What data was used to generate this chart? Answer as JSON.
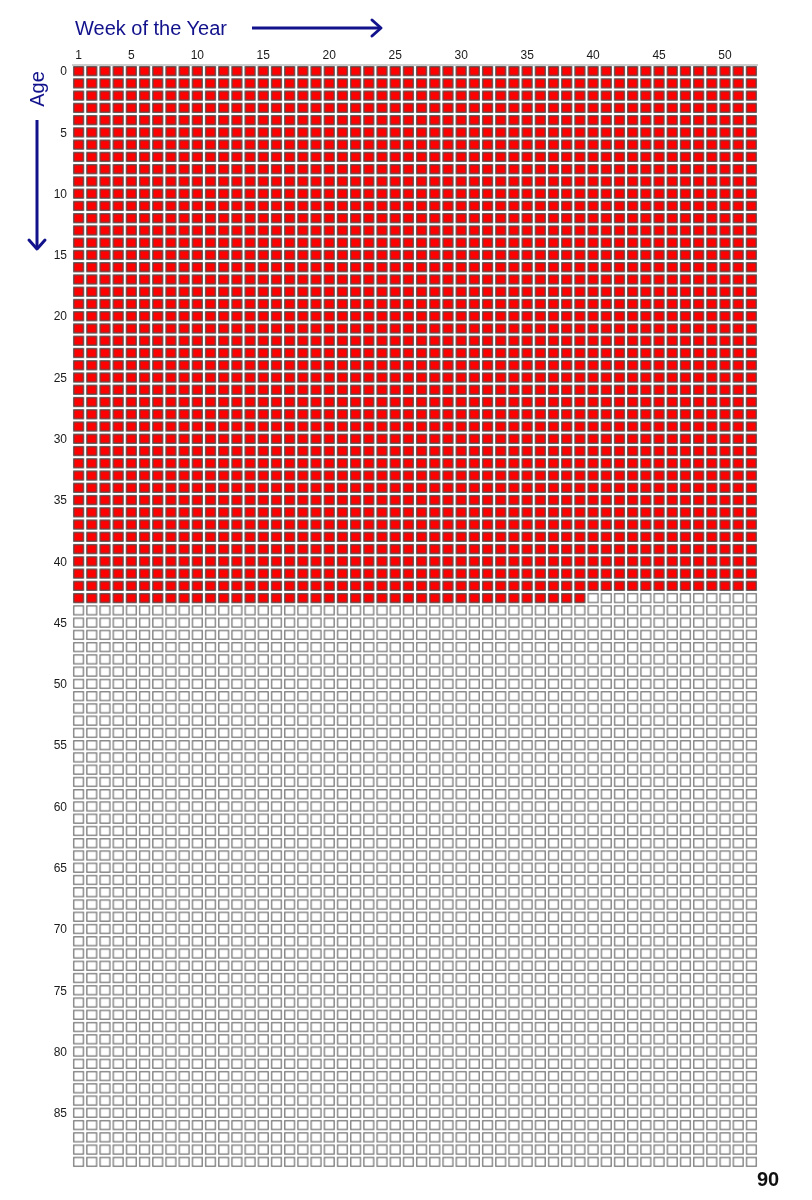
{
  "chart_data": {
    "type": "bar",
    "orientation": "horizontal",
    "stacked": true,
    "xlabel": "Week of the Year",
    "ylabel": "Age",
    "annotations": [
      "90"
    ],
    "categories": [
      "0",
      null,
      null,
      null,
      null,
      "5",
      null,
      null,
      null,
      null,
      "10",
      null,
      null,
      null,
      null,
      "15",
      null,
      null,
      null,
      null,
      "20",
      null,
      null,
      null,
      null,
      "25",
      null,
      null,
      null,
      null,
      "30",
      null,
      null,
      null,
      null,
      "35",
      null,
      null,
      null,
      null,
      "40",
      null,
      null,
      null,
      null,
      "45",
      null,
      null,
      null,
      null,
      "50",
      null,
      null,
      null,
      null,
      "55",
      null,
      null,
      null,
      null,
      "60",
      null,
      null,
      null,
      null,
      "65",
      null,
      null,
      null,
      null,
      "70",
      null,
      null,
      null,
      null,
      "75",
      null,
      null,
      null,
      null,
      "80",
      null,
      null,
      null,
      null,
      "85",
      null,
      null,
      null,
      null
    ],
    "xlim": [
      0,
      52
    ],
    "xticks": [
      {
        "value": 0.5,
        "label": "1"
      },
      {
        "value": 4.5,
        "label": "5"
      },
      {
        "value": 9.5,
        "label": "10"
      },
      {
        "value": 14.5,
        "label": "15"
      },
      {
        "value": 19.5,
        "label": "20"
      },
      {
        "value": 24.5,
        "label": "25"
      },
      {
        "value": 29.5,
        "label": "30"
      },
      {
        "value": 34.5,
        "label": "35"
      },
      {
        "value": 39.5,
        "label": "40"
      },
      {
        "value": 44.5,
        "label": "45"
      },
      {
        "value": 49.5,
        "label": "50"
      }
    ],
    "series": [
      {
        "color": "#ff0000",
        "values": [
          52,
          52,
          52,
          52,
          52,
          52,
          52,
          52,
          52,
          52,
          52,
          52,
          52,
          52,
          52,
          52,
          52,
          52,
          52,
          52,
          52,
          52,
          52,
          52,
          52,
          52,
          52,
          52,
          52,
          52,
          52,
          52,
          52,
          52,
          52,
          52,
          52,
          52,
          52,
          52,
          52,
          52,
          52,
          39,
          0,
          0,
          0,
          0,
          0,
          0,
          0,
          0,
          0,
          0,
          0,
          0,
          0,
          0,
          0,
          0,
          0,
          0,
          0,
          0,
          0,
          0,
          0,
          0,
          0,
          0,
          0,
          0,
          0,
          0,
          0,
          0,
          0,
          0,
          0,
          0,
          0,
          0,
          0,
          0,
          0,
          0,
          0,
          0,
          0,
          0
        ]
      },
      {
        "color": "#ffffff",
        "values": [
          0,
          0,
          0,
          0,
          0,
          0,
          0,
          0,
          0,
          0,
          0,
          0,
          0,
          0,
          0,
          0,
          0,
          0,
          0,
          0,
          0,
          0,
          0,
          0,
          0,
          0,
          0,
          0,
          0,
          0,
          0,
          0,
          0,
          0,
          0,
          0,
          0,
          0,
          0,
          0,
          0,
          0,
          0,
          13,
          52,
          52,
          52,
          52,
          52,
          52,
          52,
          52,
          52,
          52,
          52,
          52,
          52,
          52,
          52,
          52,
          52,
          52,
          52,
          52,
          52,
          52,
          52,
          52,
          52,
          52,
          52,
          52,
          52,
          52,
          52,
          52,
          52,
          52,
          52,
          52,
          52,
          52,
          52,
          52,
          52,
          52,
          52,
          52,
          52,
          52
        ]
      }
    ]
  }
}
